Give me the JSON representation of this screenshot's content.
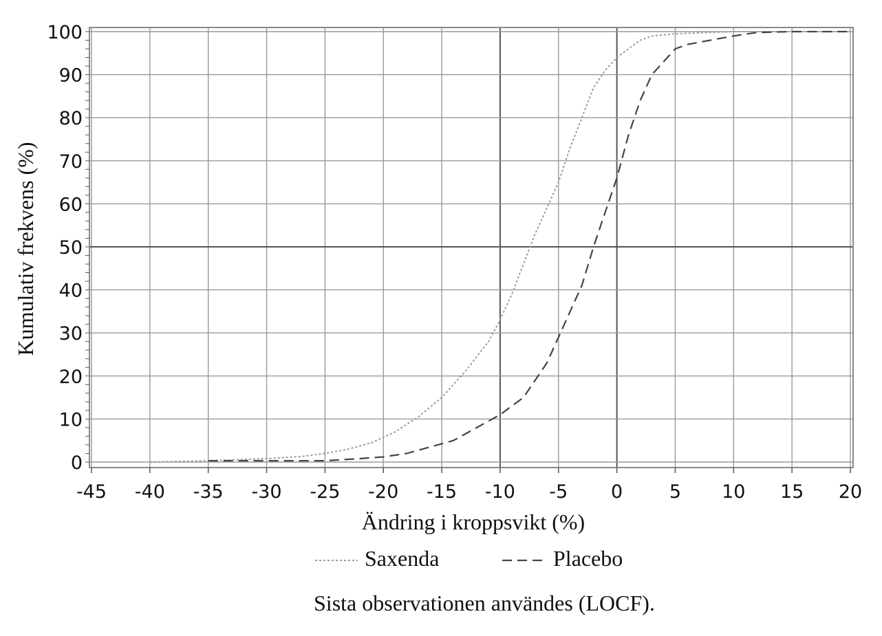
{
  "chart_data": {
    "type": "line",
    "xlabel": "Ändring i kroppsvikt (%)",
    "ylabel": "Kumulativ frekvens (%)",
    "xlim": [
      -45,
      20
    ],
    "ylim": [
      0,
      100
    ],
    "x_ticks": [
      -45,
      -40,
      -35,
      -30,
      -25,
      -20,
      -15,
      -10,
      -5,
      0,
      5,
      10,
      15,
      20
    ],
    "y_ticks": [
      0,
      10,
      20,
      30,
      40,
      50,
      60,
      70,
      80,
      90,
      100
    ],
    "grid": true,
    "legend_position": "bottom",
    "series": [
      {
        "name": "Saxenda",
        "style": "dotted",
        "color": "#9a9a9a",
        "x": [
          -40,
          -35,
          -30,
          -27,
          -25,
          -23,
          -21,
          -19,
          -17,
          -15,
          -13,
          -11,
          -10,
          -9,
          -8,
          -7,
          -6,
          -5,
          -4,
          -3,
          -2,
          -1,
          0,
          1,
          2,
          3,
          5,
          8,
          10,
          15,
          20
        ],
        "y": [
          0,
          0.3,
          0.8,
          1.3,
          2,
          3,
          4.5,
          7,
          10.5,
          15,
          21,
          28,
          33,
          39,
          46,
          53,
          59,
          65,
          73,
          80,
          87,
          91,
          94,
          96,
          98,
          99,
          99.5,
          99.8,
          100,
          100,
          100
        ]
      },
      {
        "name": "Placebo",
        "style": "dashed",
        "color": "#444444",
        "x": [
          -35,
          -30,
          -25,
          -22,
          -20,
          -18,
          -16,
          -14,
          -12,
          -10,
          -8,
          -7,
          -6,
          -5,
          -4,
          -3,
          -2,
          -1,
          0,
          1,
          2,
          3,
          4,
          5,
          6,
          8,
          10,
          12,
          15,
          20
        ],
        "y": [
          0.3,
          0.3,
          0.3,
          0.8,
          1.2,
          2,
          3.5,
          5,
          8,
          11,
          15,
          19,
          23,
          29,
          35,
          41,
          50,
          58,
          66,
          76,
          84,
          90,
          93,
          96,
          97,
          98,
          99,
          99.8,
          100,
          100
        ]
      }
    ],
    "note": "Sista observationen användes (LOCF)."
  }
}
